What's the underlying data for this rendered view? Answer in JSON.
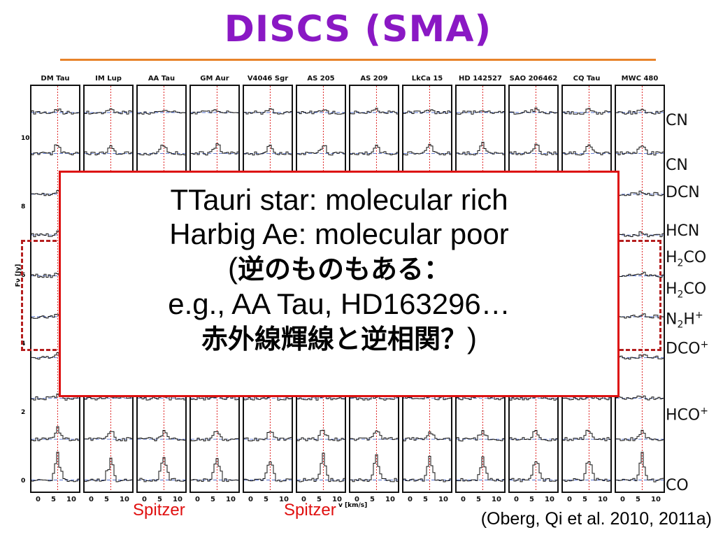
{
  "title": "DISCS (SMA)",
  "colors": {
    "title": "#8a18c4",
    "rule": "#e8832a",
    "callout_border": "#dd1111",
    "spitzer": "#e01010",
    "dash": "#b51e1e"
  },
  "panels": [
    "DM Tau",
    "IM Lup",
    "AA Tau",
    "GM Aur",
    "V4046 Sgr",
    "AS 205",
    "AS 209",
    "LkCa 15",
    "HD 142527",
    "SAO 206462",
    "CQ Tau",
    "MWC 480"
  ],
  "molecules": [
    {
      "name": "CN",
      "sub": "",
      "sup": ""
    },
    {
      "name": "CN",
      "sub": "",
      "sup": ""
    },
    {
      "name": "DCN",
      "sub": "",
      "sup": ""
    },
    {
      "name": "HCN",
      "sub": "",
      "sup": ""
    },
    {
      "name": "H",
      "sub": "2",
      "rest": "CO",
      "sup": ""
    },
    {
      "name": "H",
      "sub": "2",
      "rest": "CO",
      "sup": ""
    },
    {
      "name": "N",
      "sub": "2",
      "rest": "H",
      "sup": "+"
    },
    {
      "name": "DCO",
      "sub": "",
      "sup": "+"
    },
    {
      "name": "HCO",
      "sub": "",
      "sup": "+"
    },
    {
      "name": "CO",
      "sub": "",
      "sup": ""
    }
  ],
  "y_axis": {
    "label": "Fν [Jy]",
    "ticks": [
      "10",
      "8",
      "6",
      "4",
      "2",
      "0"
    ]
  },
  "x_axis": {
    "label": "v [km/s]",
    "ticks": [
      "0",
      "5",
      "10"
    ]
  },
  "callout": {
    "line1": "TTauri star: molecular rich",
    "line2": "Harbig Ae: molecular poor",
    "line3_open": "(",
    "line3_jp": "逆のものもある：",
    "line4": "e.g., AA Tau, HD163296…",
    "line5_jp": "赤外線輝線と逆相関？",
    "line5_close": ")"
  },
  "spitzer_labels": [
    "Spitzer",
    "Spitzer"
  ],
  "citation": "(Oberg, Qi et al. 2010, 2011a)"
}
